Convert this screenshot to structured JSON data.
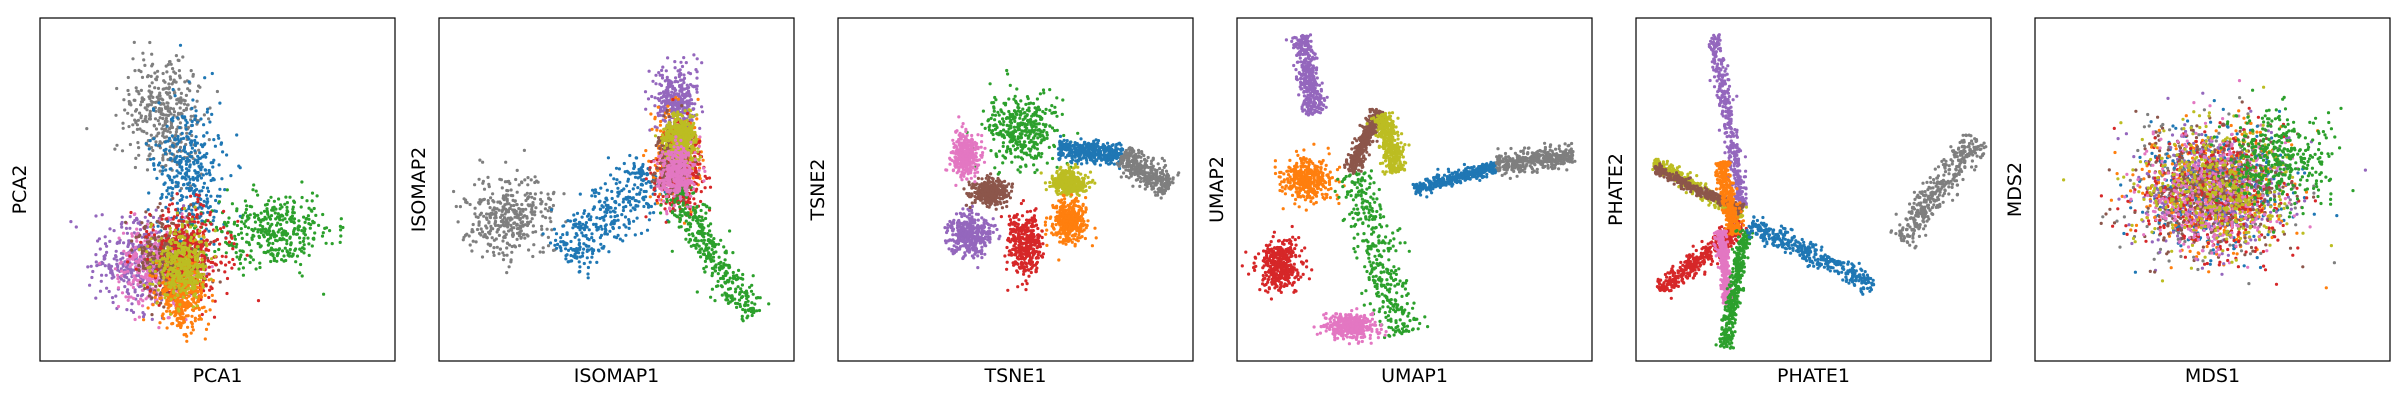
{
  "colors": {
    "blue": "#1f77b4",
    "orange": "#ff7f0e",
    "green": "#2ca02c",
    "red": "#d62728",
    "purple": "#9467bd",
    "brown": "#8c564b",
    "pink": "#e377c2",
    "gray": "#7f7f7f",
    "olive": "#bcbd22"
  },
  "chart_data": [
    {
      "type": "scatter",
      "xlabel": "PCA1",
      "ylabel": "PCA2",
      "xticks": [],
      "yticks": [],
      "clusters": [
        {
          "color": "gray",
          "center": [
            0.35,
            0.28
          ],
          "spread": [
            0.09,
            0.15
          ],
          "shape": "blob"
        },
        {
          "color": "blue",
          "center": [
            0.42,
            0.45
          ],
          "spread": [
            0.08,
            0.16
          ],
          "shape": "blob"
        },
        {
          "color": "green",
          "center": [
            0.66,
            0.62
          ],
          "spread": [
            0.14,
            0.09
          ],
          "shape": "blob"
        },
        {
          "color": "purple",
          "center": [
            0.28,
            0.72
          ],
          "spread": [
            0.1,
            0.1
          ],
          "shape": "blob"
        },
        {
          "color": "pink",
          "center": [
            0.33,
            0.73
          ],
          "spread": [
            0.09,
            0.1
          ],
          "shape": "blob"
        },
        {
          "color": "brown",
          "center": [
            0.37,
            0.7
          ],
          "spread": [
            0.08,
            0.1
          ],
          "shape": "blob"
        },
        {
          "color": "red",
          "center": [
            0.42,
            0.68
          ],
          "spread": [
            0.09,
            0.11
          ],
          "shape": "blob"
        },
        {
          "color": "orange",
          "center": [
            0.4,
            0.8
          ],
          "spread": [
            0.06,
            0.08
          ],
          "shape": "blob"
        },
        {
          "color": "olive",
          "center": [
            0.4,
            0.72
          ],
          "spread": [
            0.06,
            0.08
          ],
          "shape": "blob"
        }
      ]
    },
    {
      "type": "scatter",
      "xlabel": "ISOMAP1",
      "ylabel": "ISOMAP2",
      "xticks": [],
      "yticks": [],
      "clusters": [
        {
          "color": "gray",
          "center": [
            0.2,
            0.58
          ],
          "spread": [
            0.1,
            0.1
          ],
          "shape": "blob"
        },
        {
          "color": "blue",
          "from": [
            0.35,
            0.7
          ],
          "to": [
            0.6,
            0.45
          ],
          "width": 0.08,
          "shape": "band"
        },
        {
          "color": "purple",
          "center": [
            0.67,
            0.25
          ],
          "spread": [
            0.05,
            0.08
          ],
          "shape": "blob"
        },
        {
          "color": "orange",
          "center": [
            0.67,
            0.4
          ],
          "spread": [
            0.05,
            0.1
          ],
          "shape": "blob"
        },
        {
          "color": "red",
          "center": [
            0.68,
            0.45
          ],
          "spread": [
            0.05,
            0.1
          ],
          "shape": "blob"
        },
        {
          "color": "brown",
          "center": [
            0.66,
            0.42
          ],
          "spread": [
            0.04,
            0.08
          ],
          "shape": "blob"
        },
        {
          "color": "olive",
          "center": [
            0.68,
            0.35
          ],
          "spread": [
            0.04,
            0.06
          ],
          "shape": "blob"
        },
        {
          "color": "green",
          "from": [
            0.66,
            0.5
          ],
          "to": [
            0.88,
            0.87
          ],
          "width": 0.05,
          "shape": "band"
        },
        {
          "color": "pink",
          "center": [
            0.67,
            0.45
          ],
          "spread": [
            0.04,
            0.06
          ],
          "shape": "blob"
        }
      ]
    },
    {
      "type": "scatter",
      "xlabel": "TSNE1",
      "ylabel": "TSNE2",
      "xticks": [],
      "yticks": [],
      "clusters": [
        {
          "color": "green",
          "center": [
            0.52,
            0.33
          ],
          "spread": [
            0.08,
            0.09
          ],
          "shape": "blob"
        },
        {
          "color": "blue",
          "from": [
            0.62,
            0.38
          ],
          "to": [
            0.8,
            0.4
          ],
          "width": 0.03,
          "shape": "band"
        },
        {
          "color": "gray",
          "from": [
            0.8,
            0.4
          ],
          "to": [
            0.93,
            0.5
          ],
          "width": 0.04,
          "shape": "band"
        },
        {
          "color": "olive",
          "center": [
            0.65,
            0.48
          ],
          "spread": [
            0.04,
            0.03
          ],
          "shape": "blob"
        },
        {
          "color": "orange",
          "center": [
            0.65,
            0.59
          ],
          "spread": [
            0.04,
            0.05
          ],
          "shape": "blob"
        },
        {
          "color": "red",
          "center": [
            0.53,
            0.66
          ],
          "spread": [
            0.04,
            0.07
          ],
          "shape": "blob"
        },
        {
          "color": "purple",
          "center": [
            0.37,
            0.63
          ],
          "spread": [
            0.05,
            0.05
          ],
          "shape": "blob"
        },
        {
          "color": "brown",
          "center": [
            0.43,
            0.51
          ],
          "spread": [
            0.04,
            0.03
          ],
          "shape": "blob"
        },
        {
          "color": "pink",
          "center": [
            0.36,
            0.4
          ],
          "spread": [
            0.03,
            0.05
          ],
          "shape": "blob"
        }
      ]
    },
    {
      "type": "scatter",
      "xlabel": "UMAP1",
      "ylabel": "UMAP2",
      "xticks": [],
      "yticks": [],
      "clusters": [
        {
          "color": "purple",
          "from": [
            0.18,
            0.05
          ],
          "to": [
            0.22,
            0.28
          ],
          "width": 0.03,
          "shape": "band"
        },
        {
          "color": "orange",
          "center": [
            0.2,
            0.47
          ],
          "spread": [
            0.06,
            0.05
          ],
          "shape": "blob"
        },
        {
          "color": "red",
          "center": [
            0.12,
            0.72
          ],
          "spread": [
            0.05,
            0.06
          ],
          "shape": "blob"
        },
        {
          "color": "green",
          "from": [
            0.33,
            0.45
          ],
          "to": [
            0.47,
            0.92
          ],
          "width": 0.06,
          "shape": "band"
        },
        {
          "color": "pink",
          "center": [
            0.32,
            0.9
          ],
          "spread": [
            0.06,
            0.03
          ],
          "shape": "blob"
        },
        {
          "color": "brown",
          "from": [
            0.32,
            0.45
          ],
          "to": [
            0.4,
            0.27
          ],
          "width": 0.02,
          "shape": "band"
        },
        {
          "color": "olive",
          "from": [
            0.41,
            0.28
          ],
          "to": [
            0.45,
            0.45
          ],
          "width": 0.03,
          "shape": "band"
        },
        {
          "color": "blue",
          "from": [
            0.5,
            0.5
          ],
          "to": [
            0.73,
            0.43
          ],
          "width": 0.02,
          "shape": "band"
        },
        {
          "color": "gray",
          "from": [
            0.73,
            0.43
          ],
          "to": [
            0.95,
            0.4
          ],
          "width": 0.03,
          "shape": "band"
        }
      ]
    },
    {
      "type": "scatter",
      "xlabel": "PHATE1",
      "ylabel": "PHATE2",
      "xticks": [],
      "yticks": [],
      "clusters": [
        {
          "color": "purple",
          "from": [
            0.22,
            0.05
          ],
          "to": [
            0.3,
            0.55
          ],
          "width": 0.02,
          "shape": "band"
        },
        {
          "color": "olive",
          "from": [
            0.05,
            0.42
          ],
          "to": [
            0.3,
            0.58
          ],
          "width": 0.02,
          "shape": "band"
        },
        {
          "color": "brown",
          "from": [
            0.05,
            0.44
          ],
          "to": [
            0.3,
            0.56
          ],
          "width": 0.015,
          "shape": "band"
        },
        {
          "color": "red",
          "from": [
            0.07,
            0.8
          ],
          "to": [
            0.3,
            0.6
          ],
          "width": 0.03,
          "shape": "band"
        },
        {
          "color": "orange",
          "from": [
            0.24,
            0.42
          ],
          "to": [
            0.28,
            0.63
          ],
          "width": 0.02,
          "shape": "band"
        },
        {
          "color": "pink",
          "from": [
            0.24,
            0.62
          ],
          "to": [
            0.26,
            0.84
          ],
          "width": 0.015,
          "shape": "band"
        },
        {
          "color": "green",
          "from": [
            0.31,
            0.62
          ],
          "to": [
            0.25,
            0.96
          ],
          "width": 0.02,
          "shape": "band"
        },
        {
          "color": "blue",
          "from": [
            0.32,
            0.6
          ],
          "to": [
            0.67,
            0.78
          ],
          "width": 0.03,
          "shape": "band"
        },
        {
          "color": "gray",
          "from": [
            0.75,
            0.65
          ],
          "to": [
            0.96,
            0.35
          ],
          "width": 0.04,
          "shape": "band"
        }
      ]
    },
    {
      "type": "scatter",
      "xlabel": "MDS1",
      "ylabel": "MDS2",
      "xticks": [],
      "yticks": [],
      "clusters": [
        {
          "color": "gray",
          "center": [
            0.5,
            0.5
          ],
          "spread": [
            0.17,
            0.15
          ],
          "shape": "blob"
        },
        {
          "color": "blue",
          "center": [
            0.5,
            0.5
          ],
          "spread": [
            0.17,
            0.15
          ],
          "shape": "blob"
        },
        {
          "color": "orange",
          "center": [
            0.5,
            0.5
          ],
          "spread": [
            0.17,
            0.15
          ],
          "shape": "blob"
        },
        {
          "color": "purple",
          "center": [
            0.5,
            0.5
          ],
          "spread": [
            0.17,
            0.15
          ],
          "shape": "blob"
        },
        {
          "color": "red",
          "center": [
            0.5,
            0.52
          ],
          "spread": [
            0.17,
            0.15
          ],
          "shape": "blob"
        },
        {
          "color": "brown",
          "center": [
            0.5,
            0.5
          ],
          "spread": [
            0.17,
            0.15
          ],
          "shape": "blob"
        },
        {
          "color": "pink",
          "center": [
            0.5,
            0.5
          ],
          "spread": [
            0.17,
            0.15
          ],
          "shape": "blob"
        },
        {
          "color": "olive",
          "center": [
            0.5,
            0.5
          ],
          "spread": [
            0.17,
            0.15
          ],
          "shape": "blob"
        },
        {
          "color": "green",
          "center": [
            0.68,
            0.4
          ],
          "spread": [
            0.12,
            0.12
          ],
          "shape": "blob"
        }
      ]
    }
  ]
}
